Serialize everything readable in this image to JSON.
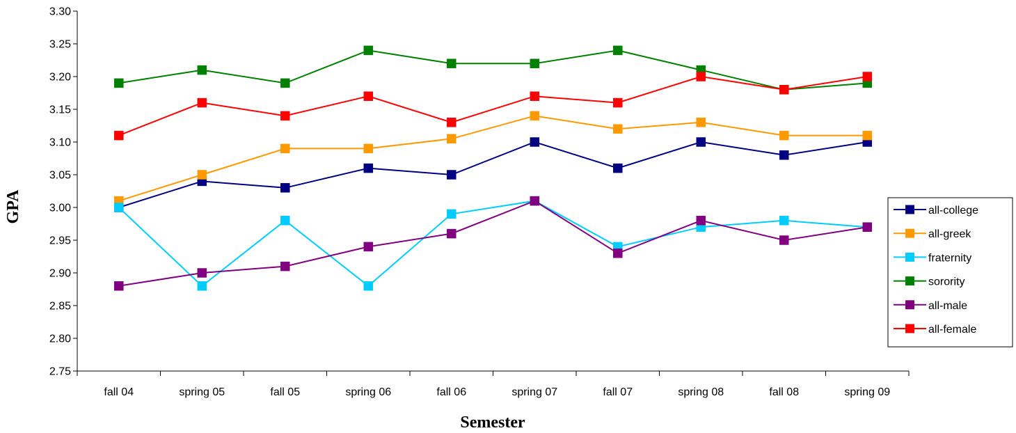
{
  "chart_data": {
    "type": "line",
    "title": "",
    "xlabel": "Semester",
    "ylabel": "GPA",
    "categories": [
      "fall 04",
      "spring 05",
      "fall 05",
      "spring 06",
      "fall 06",
      "spring 07",
      "fall 07",
      "spring 08",
      "fall 08",
      "spring 09"
    ],
    "ylim": [
      2.75,
      3.3
    ],
    "ytick_step": 0.05,
    "yticks": [
      "3.30",
      "3.25",
      "3.20",
      "3.15",
      "3.10",
      "3.05",
      "3.00",
      "2.95",
      "2.90",
      "2.85",
      "2.80",
      "2.75"
    ],
    "grid": false,
    "legend_position": "right",
    "marker": "square",
    "series": [
      {
        "name": "all-college",
        "color": "#000080",
        "values": [
          3.0,
          3.04,
          3.03,
          3.06,
          3.05,
          3.1,
          3.06,
          3.1,
          3.08,
          3.1
        ]
      },
      {
        "name": "all-greek",
        "color": "#FF9900",
        "values": [
          3.01,
          3.05,
          3.09,
          3.09,
          3.105,
          3.14,
          3.12,
          3.13,
          3.11,
          3.11
        ]
      },
      {
        "name": "fraternity",
        "color": "#00CCFF",
        "values": [
          3.0,
          2.88,
          2.98,
          2.88,
          2.99,
          3.01,
          2.94,
          2.97,
          2.98,
          2.97
        ]
      },
      {
        "name": "sorority",
        "color": "#008000",
        "values": [
          3.19,
          3.21,
          3.19,
          3.24,
          3.22,
          3.22,
          3.24,
          3.21,
          3.18,
          3.19
        ]
      },
      {
        "name": "all-male",
        "color": "#800080",
        "values": [
          2.88,
          2.9,
          2.91,
          2.94,
          2.96,
          3.01,
          2.93,
          2.98,
          2.95,
          2.97
        ]
      },
      {
        "name": "all-female",
        "color": "#FF0000",
        "values": [
          3.11,
          3.16,
          3.14,
          3.17,
          3.13,
          3.17,
          3.16,
          3.2,
          3.18,
          3.2
        ]
      }
    ]
  }
}
